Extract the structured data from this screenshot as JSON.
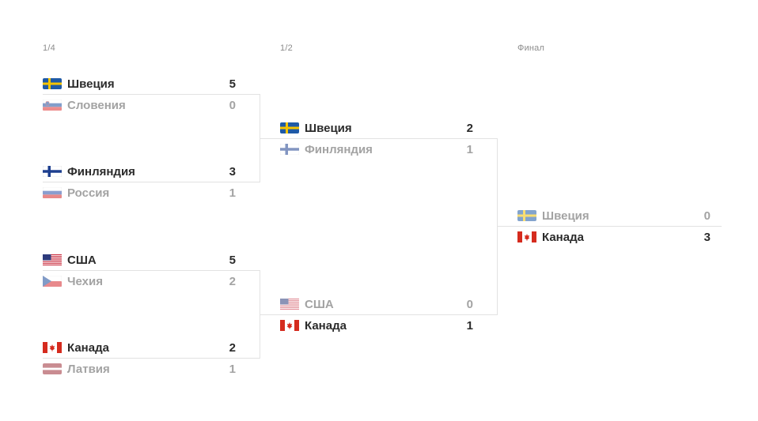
{
  "rounds": [
    {
      "title": "1/4"
    },
    {
      "title": "1/2"
    },
    {
      "title": "Финал"
    }
  ],
  "matches": {
    "qf1": {
      "team1": {
        "name": "Швеция",
        "score": "5",
        "flag": "flag-sweden"
      },
      "team2": {
        "name": "Словения",
        "score": "0",
        "flag": "flag-slovenia"
      }
    },
    "qf2": {
      "team1": {
        "name": "Финляндия",
        "score": "3",
        "flag": "flag-finland"
      },
      "team2": {
        "name": "Россия",
        "score": "1",
        "flag": "flag-russia"
      }
    },
    "qf3": {
      "team1": {
        "name": "США",
        "score": "5",
        "flag": "flag-usa"
      },
      "team2": {
        "name": "Чехия",
        "score": "2",
        "flag": "flag-czech"
      }
    },
    "qf4": {
      "team1": {
        "name": "Канада",
        "score": "2",
        "flag": "flag-canada"
      },
      "team2": {
        "name": "Латвия",
        "score": "1",
        "flag": "flag-latvia"
      }
    },
    "sf1": {
      "team1": {
        "name": "Швеция",
        "score": "2",
        "flag": "flag-sweden"
      },
      "team2": {
        "name": "Финляндия",
        "score": "1",
        "flag": "flag-finland"
      }
    },
    "sf2": {
      "team1": {
        "name": "США",
        "score": "0",
        "flag": "flag-usa"
      },
      "team2": {
        "name": "Канада",
        "score": "1",
        "flag": "flag-canada"
      }
    },
    "final": {
      "team1": {
        "name": "Швеция",
        "score": "0",
        "flag": "flag-sweden"
      },
      "team2": {
        "name": "Канада",
        "score": "3",
        "flag": "flag-canada"
      }
    }
  },
  "colors": {
    "winner_text": "#2b2b2b",
    "loser_text": "#a3a3a3",
    "round_title": "#8c8c8c",
    "connector": "#e2e2e2"
  }
}
